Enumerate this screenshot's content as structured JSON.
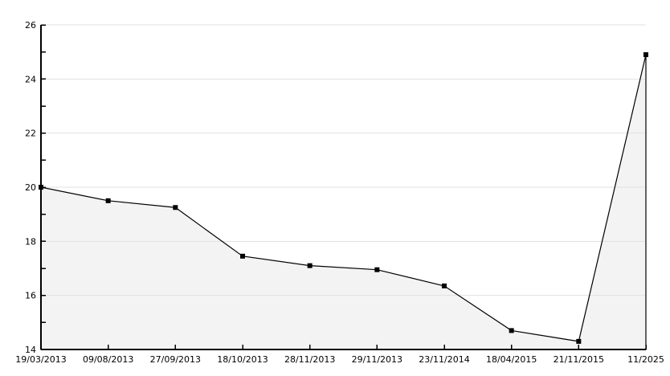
{
  "chart_data": {
    "type": "area",
    "title": "",
    "xlabel": "",
    "ylabel": "",
    "categories": [
      "19/03/2013",
      "09/08/2013",
      "27/09/2013",
      "18/10/2013",
      "28/11/2013",
      "29/11/2013",
      "23/11/2014",
      "18/04/2015",
      "21/11/2015",
      "11/2025"
    ],
    "values": [
      20.0,
      19.5,
      19.25,
      17.45,
      17.1,
      16.95,
      16.35,
      14.7,
      14.3,
      24.9
    ],
    "ylim": [
      14,
      26
    ],
    "yticks_labeled": [
      14,
      16,
      18,
      20,
      22,
      24,
      26
    ],
    "ytick_minor_step": 1,
    "grid": "horizontal-major",
    "legend": "none",
    "marker_shape": "square",
    "colors": {
      "background": "#ffffff",
      "area_fill": "#f3f3f3",
      "gridline": "#e2e2e2",
      "axis": "#000000",
      "line": "#000000",
      "marker": "#000000",
      "label_text": "#000000"
    }
  }
}
